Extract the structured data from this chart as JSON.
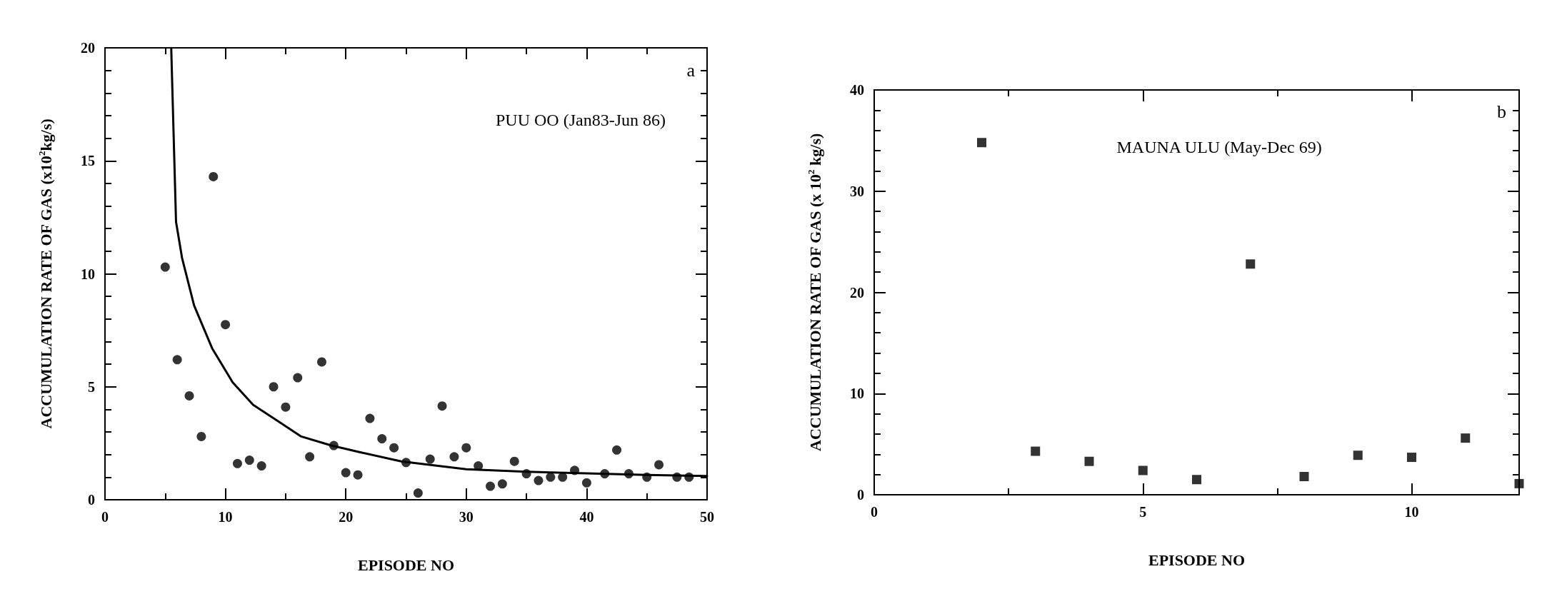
{
  "chart_data": [
    {
      "type": "scatter",
      "xlabel": "EPISODE NO",
      "ylabel": "ACCUMULATION RATE OF GAS (x10$^{2}$kg/s)",
      "annotations": [
        "PUU OO (Jan83-Jun 86)",
        "a"
      ],
      "xlim": [
        0,
        50
      ],
      "xticks": [
        0,
        10,
        20,
        30,
        40,
        50
      ],
      "ylim": [
        0,
        20
      ],
      "yticks": [
        0,
        5,
        10,
        15,
        20
      ],
      "grid": false,
      "series": [
        {
          "marker": "circle",
          "color": "#000000",
          "x": [
            5,
            6,
            7,
            8,
            9,
            10,
            11,
            12,
            13,
            14,
            15,
            16,
            17,
            18,
            19,
            20,
            21,
            22,
            23,
            24,
            25,
            26,
            27,
            28,
            29,
            30,
            31,
            32,
            33,
            34,
            35,
            36,
            37,
            38,
            39,
            40,
            41.5,
            42.5,
            43.5,
            45,
            46,
            47.5,
            48.5
          ],
          "values": [
            10.3,
            6.2,
            4.6,
            2.8,
            14.3,
            7.75,
            1.6,
            1.75,
            1.5,
            5.0,
            4.1,
            5.4,
            1.9,
            6.1,
            2.4,
            1.2,
            1.1,
            3.6,
            2.7,
            2.3,
            1.65,
            0.3,
            1.8,
            4.15,
            1.9,
            2.3,
            1.5,
            0.6,
            0.7,
            1.7,
            1.15,
            0.85,
            1.0,
            1.0,
            1.3,
            0.75,
            1.15,
            2.2,
            1.15,
            1.0,
            1.55,
            1.0,
            1.0
          ]
        },
        {
          "type": "line",
          "marker": "none",
          "line_style": "solid",
          "color": "#000000",
          "x": [
            5.5,
            5.9,
            6.4,
            7.4,
            8.9,
            10.6,
            12.3,
            14.6,
            16.3,
            18.8,
            21.2,
            24.6,
            30,
            35,
            40,
            45,
            50
          ],
          "values": [
            20,
            12.3,
            10.7,
            8.6,
            6.7,
            5.2,
            4.2,
            3.4,
            2.8,
            2.4,
            2.1,
            1.7,
            1.35,
            1.24,
            1.17,
            1.1,
            1.05
          ]
        }
      ]
    },
    {
      "type": "scatter",
      "xlabel": "EPISODE NO",
      "ylabel": "ACCUMULATION RATE OF GAS (x 10$^{2}$ kg/s)",
      "annotations": [
        "MAUNA ULU (May-Dec 69)",
        "b"
      ],
      "xlim": [
        0,
        12
      ],
      "xticks": [
        0,
        5,
        10
      ],
      "ylim": [
        0,
        40
      ],
      "yticks": [
        0,
        10,
        20,
        30,
        40
      ],
      "grid": false,
      "series": [
        {
          "marker": "square",
          "color": "#000000",
          "x": [
            2,
            3,
            4,
            5,
            6,
            7,
            8,
            9,
            10,
            11,
            12
          ],
          "values": [
            34.8,
            4.3,
            3.3,
            2.4,
            1.5,
            22.8,
            1.8,
            3.9,
            3.7,
            5.6,
            1.1
          ]
        }
      ]
    }
  ]
}
